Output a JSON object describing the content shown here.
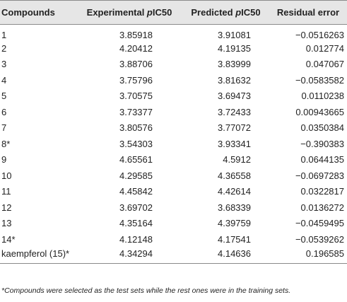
{
  "table": {
    "headers": {
      "compounds": "Compounds",
      "experimental_prefix": "Experimental ",
      "experimental_italic": "p",
      "experimental_suffix": "IC50",
      "predicted_prefix": "Predicted ",
      "predicted_italic": "p",
      "predicted_suffix": "IC50",
      "residual": "Residual error"
    },
    "rows": [
      {
        "compound": "1",
        "experimental": "3.85918",
        "predicted": "3.91081",
        "residual": "−0.0516263"
      },
      {
        "compound": "2",
        "experimental": "4.20412",
        "predicted": "4.19135",
        "residual": "0.012774"
      },
      {
        "compound": "3",
        "experimental": "3.88706",
        "predicted": "3.83999",
        "residual": "0.047067"
      },
      {
        "compound": "4",
        "experimental": "3.75796",
        "predicted": "3.81632",
        "residual": "−0.0583582"
      },
      {
        "compound": "5",
        "experimental": "3.70575",
        "predicted": "3.69473",
        "residual": "0.0110238"
      },
      {
        "compound": "6",
        "experimental": "3.73377",
        "predicted": "3.72433",
        "residual": "0.00943665"
      },
      {
        "compound": "7",
        "experimental": "3.80576",
        "predicted": "3.77072",
        "residual": "0.0350384"
      },
      {
        "compound": "8*",
        "experimental": "3.54303",
        "predicted": "3.93341",
        "residual": "−0.390383"
      },
      {
        "compound": "9",
        "experimental": "4.65561",
        "predicted": "4.5912",
        "residual": "0.0644135"
      },
      {
        "compound": "10",
        "experimental": "4.29585",
        "predicted": "4.36558",
        "residual": "−0.0697283"
      },
      {
        "compound": "11",
        "experimental": "4.45842",
        "predicted": "4.42614",
        "residual": "0.0322817"
      },
      {
        "compound": "12",
        "experimental": "3.69702",
        "predicted": "3.68339",
        "residual": "0.0136272"
      },
      {
        "compound": "13",
        "experimental": "4.35164",
        "predicted": "4.39759",
        "residual": "−0.0459495"
      },
      {
        "compound": "14*",
        "experimental": "4.12148",
        "predicted": "4.17541",
        "residual": "−0.0539262"
      },
      {
        "compound": "kaempferol (15)*",
        "experimental": "4.34294",
        "predicted": "4.14636",
        "residual": "0.196585"
      }
    ]
  },
  "footnote": "*Compounds were selected as the test sets while the rest ones were in the training sets."
}
